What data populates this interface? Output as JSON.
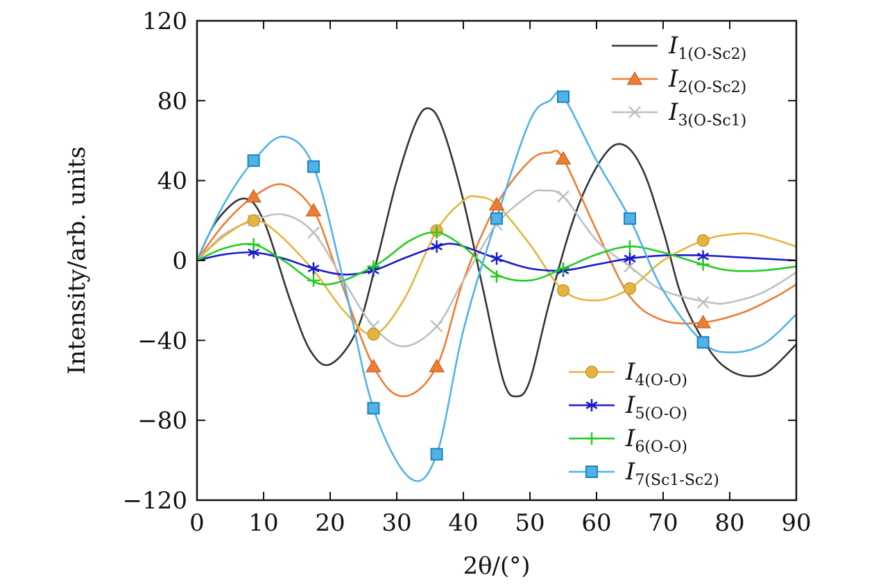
{
  "chart_data": {
    "type": "line",
    "title": "",
    "xlabel": "2θ/(°)",
    "ylabel": "Intensity/arb. units",
    "xlim": [
      0,
      90
    ],
    "ylim": [
      -120,
      120
    ],
    "x_ticks": [
      "0",
      "10",
      "20",
      "30",
      "40",
      "50",
      "60",
      "70",
      "80",
      "90"
    ],
    "y_ticks": [
      "−120",
      "−80",
      "−40",
      "0",
      "40",
      "80",
      "120"
    ],
    "x_tick_values": [
      0,
      10,
      20,
      30,
      40,
      50,
      60,
      70,
      80,
      90
    ],
    "y_tick_values": [
      -120,
      -80,
      -40,
      0,
      40,
      80,
      120
    ],
    "grid": false,
    "legend_placement": [
      "top-right",
      "bottom-right"
    ],
    "series": [
      {
        "name": "I1(O-Sc2)",
        "name_main": "I",
        "name_sub": "1(O-Sc2)",
        "color": "#333333",
        "marker": "none",
        "legend_group": "top-right",
        "curve": [
          [
            0,
            0
          ],
          [
            3,
            20
          ],
          [
            7,
            31
          ],
          [
            10,
            20
          ],
          [
            14,
            -20
          ],
          [
            17,
            -45
          ],
          [
            20,
            -52
          ],
          [
            24,
            -35
          ],
          [
            27,
            0
          ],
          [
            30,
            40
          ],
          [
            33,
            70
          ],
          [
            35,
            76
          ],
          [
            37,
            65
          ],
          [
            40,
            30
          ],
          [
            43,
            -15
          ],
          [
            46,
            -60
          ],
          [
            48,
            -68
          ],
          [
            50,
            -60
          ],
          [
            53,
            -20
          ],
          [
            57,
            25
          ],
          [
            61,
            52
          ],
          [
            64,
            58
          ],
          [
            67,
            45
          ],
          [
            70,
            15
          ],
          [
            73,
            -20
          ],
          [
            77,
            -45
          ],
          [
            80,
            -55
          ],
          [
            83,
            -58
          ],
          [
            86,
            -55
          ],
          [
            90,
            -42
          ]
        ],
        "markers": []
      },
      {
        "name": "I2(O-Sc2)",
        "name_main": "I",
        "name_sub": "2(O-Sc2)",
        "color": "#ed7d31",
        "marker": "triangle",
        "legend_group": "top-right",
        "curve": [
          [
            0,
            0
          ],
          [
            4,
            18
          ],
          [
            8.5,
            32
          ],
          [
            13,
            38
          ],
          [
            17.5,
            25
          ],
          [
            21,
            -5
          ],
          [
            26.5,
            -53
          ],
          [
            31,
            -68
          ],
          [
            36,
            -53
          ],
          [
            40,
            -10
          ],
          [
            45,
            28
          ],
          [
            50,
            50
          ],
          [
            53,
            54
          ],
          [
            55,
            51
          ],
          [
            60,
            15
          ],
          [
            65,
            -18
          ],
          [
            70,
            -30
          ],
          [
            76,
            -31
          ],
          [
            82,
            -26
          ],
          [
            87,
            -18
          ],
          [
            90,
            -12
          ]
        ],
        "markers": [
          [
            8.5,
            32
          ],
          [
            17.5,
            25
          ],
          [
            26.5,
            -53
          ],
          [
            36,
            -53
          ],
          [
            45,
            28
          ],
          [
            55,
            51
          ],
          [
            76,
            -31
          ]
        ]
      },
      {
        "name": "I3(O-Sc1)",
        "name_main": "I",
        "name_sub": "3(O-Sc1)",
        "color": "#bfbfbf",
        "marker": "x",
        "legend_group": "top-right",
        "curve": [
          [
            0,
            0
          ],
          [
            4,
            13
          ],
          [
            8.5,
            20
          ],
          [
            13,
            23
          ],
          [
            17.5,
            14
          ],
          [
            22,
            -10
          ],
          [
            26.5,
            -33
          ],
          [
            31,
            -43
          ],
          [
            36,
            -33
          ],
          [
            40,
            -10
          ],
          [
            45,
            18
          ],
          [
            50,
            33
          ],
          [
            52,
            35
          ],
          [
            55,
            32
          ],
          [
            60,
            10
          ],
          [
            65,
            -3
          ],
          [
            70,
            -15
          ],
          [
            77,
            -21
          ],
          [
            80,
            -21
          ],
          [
            85,
            -16
          ],
          [
            90,
            -6
          ]
        ],
        "markers": [
          [
            8.5,
            20
          ],
          [
            17.5,
            14
          ],
          [
            26.5,
            -33
          ],
          [
            36,
            -33
          ],
          [
            45,
            18
          ],
          [
            55,
            32
          ],
          [
            65,
            -3
          ],
          [
            76,
            -21
          ]
        ]
      },
      {
        "name": "I4(O-O)",
        "name_main": "I",
        "name_sub": "4(O-O)",
        "color": "#e6b43c",
        "marker": "circle",
        "legend_group": "bottom-right",
        "curve": [
          [
            0,
            0
          ],
          [
            4,
            12
          ],
          [
            8.5,
            20
          ],
          [
            12,
            14
          ],
          [
            17.5,
            -5
          ],
          [
            22,
            -25
          ],
          [
            26.5,
            -37
          ],
          [
            31,
            -20
          ],
          [
            36,
            15
          ],
          [
            40,
            30
          ],
          [
            42,
            32
          ],
          [
            45,
            28
          ],
          [
            50,
            8
          ],
          [
            55,
            -15
          ],
          [
            60,
            -20
          ],
          [
            65,
            -14
          ],
          [
            70,
            0
          ],
          [
            76,
            10
          ],
          [
            80,
            13
          ],
          [
            84,
            13
          ],
          [
            90,
            7
          ]
        ],
        "markers": [
          [
            8.5,
            20
          ],
          [
            26.5,
            -37
          ],
          [
            36,
            15
          ],
          [
            55,
            -15
          ],
          [
            65,
            -14
          ],
          [
            76,
            10
          ]
        ]
      },
      {
        "name": "I5(O-O)",
        "name_main": "I",
        "name_sub": "5(O-O)",
        "color": "#1a1acc",
        "marker": "asterisk",
        "legend_group": "bottom-right",
        "curve": [
          [
            0,
            0
          ],
          [
            4,
            3
          ],
          [
            8.5,
            4
          ],
          [
            13,
            1
          ],
          [
            17.5,
            -4
          ],
          [
            22,
            -7
          ],
          [
            26.5,
            -5
          ],
          [
            31,
            1
          ],
          [
            36,
            7
          ],
          [
            39,
            8
          ],
          [
            45,
            1
          ],
          [
            50,
            -4
          ],
          [
            55,
            -5
          ],
          [
            60,
            -2
          ],
          [
            65,
            1
          ],
          [
            70,
            2.5
          ],
          [
            76,
            2.5
          ],
          [
            82,
            1.5
          ],
          [
            90,
            0
          ]
        ],
        "markers": [
          [
            8.5,
            4
          ],
          [
            17.5,
            -4
          ],
          [
            26.5,
            -5
          ],
          [
            36,
            7
          ],
          [
            45,
            1
          ],
          [
            55,
            -5
          ],
          [
            65,
            1
          ],
          [
            76,
            2
          ]
        ]
      },
      {
        "name": "I6(O-O)",
        "name_main": "I",
        "name_sub": "6(O-O)",
        "color": "#22cc22",
        "marker": "plus",
        "legend_group": "bottom-right",
        "curve": [
          [
            0,
            0
          ],
          [
            4,
            6
          ],
          [
            8.5,
            8
          ],
          [
            13,
            0
          ],
          [
            19,
            -12
          ],
          [
            26.5,
            -3
          ],
          [
            32,
            10
          ],
          [
            36,
            14
          ],
          [
            40,
            7
          ],
          [
            45,
            -7
          ],
          [
            50,
            -10
          ],
          [
            55,
            -4
          ],
          [
            60,
            3
          ],
          [
            65,
            7
          ],
          [
            70,
            4
          ],
          [
            76,
            -2
          ],
          [
            80,
            -5
          ],
          [
            85,
            -5
          ],
          [
            90,
            -3
          ]
        ],
        "markers": [
          [
            8.5,
            8
          ],
          [
            17.5,
            -10
          ],
          [
            26.5,
            -3
          ],
          [
            36,
            14
          ],
          [
            45,
            -8
          ],
          [
            55,
            -4
          ],
          [
            65,
            7
          ],
          [
            76,
            -2
          ]
        ]
      },
      {
        "name": "I7(Sc1-Sc2)",
        "name_main": "I",
        "name_sub": "7(Sc1-Sc2)",
        "color": "#4fb3e8",
        "marker": "square",
        "legend_group": "bottom-right",
        "curve": [
          [
            0,
            0
          ],
          [
            4,
            28
          ],
          [
            8.5,
            50
          ],
          [
            13,
            62
          ],
          [
            17.5,
            47
          ],
          [
            22,
            -10
          ],
          [
            26.5,
            -74
          ],
          [
            32,
            -109
          ],
          [
            36,
            -97
          ],
          [
            40,
            -35
          ],
          [
            45,
            21
          ],
          [
            50,
            70
          ],
          [
            53,
            80
          ],
          [
            55,
            82
          ],
          [
            60,
            50
          ],
          [
            65,
            21
          ],
          [
            70,
            -15
          ],
          [
            76,
            -41
          ],
          [
            80,
            -46
          ],
          [
            85,
            -42
          ],
          [
            90,
            -27
          ]
        ],
        "markers": [
          [
            8.5,
            50
          ],
          [
            17.5,
            47
          ],
          [
            26.5,
            -74
          ],
          [
            36,
            -97
          ],
          [
            45,
            21
          ],
          [
            55,
            82
          ],
          [
            65,
            21
          ],
          [
            76,
            -41
          ]
        ]
      }
    ]
  }
}
